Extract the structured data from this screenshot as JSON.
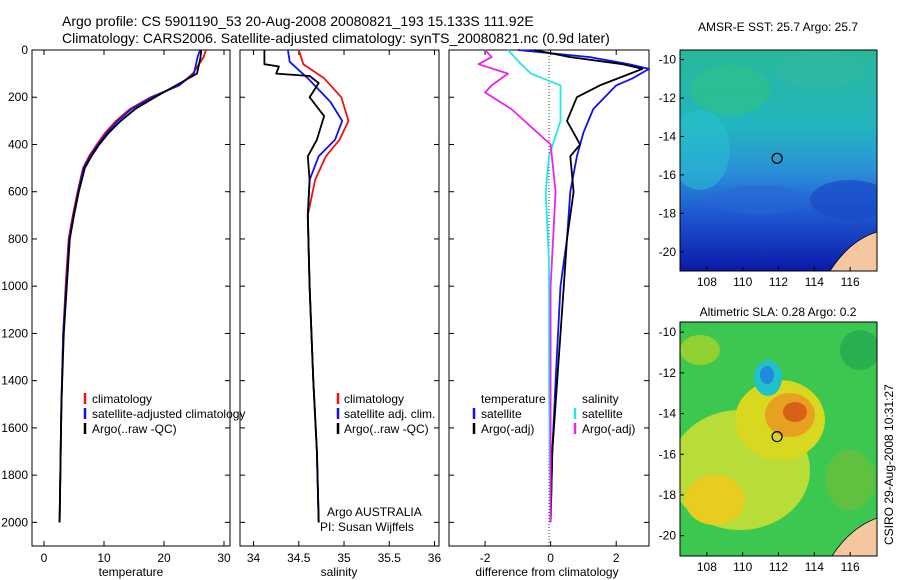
{
  "header": {
    "title_line1": "Argo profile: CS 5901190_53 20-Aug-2008 20080821_193 15.133S 111.92E",
    "title_line2": "Climatology: CARS2006. Satellite-adjusted climatology: synTS_20080821.nc (0.9d later)"
  },
  "side_label": "CSIRO 29-Aug-2008 10:31:27",
  "colors": {
    "climatology": "#ee1111",
    "satellite": "#1111ee",
    "argo": "#000000",
    "sat_diff": "#22e8e8",
    "argo_diff": "#ee22ee"
  },
  "chart_data": [
    {
      "type": "line",
      "name": "temperature",
      "xlabel": "temperature",
      "ylabel": "",
      "xlim": [
        -2,
        31
      ],
      "ylim": [
        2100,
        0
      ],
      "xticks": [
        "0",
        "10",
        "20",
        "30"
      ],
      "yticks": [
        "0",
        "200",
        "400",
        "600",
        "800",
        "1000",
        "1200",
        "1400",
        "1600",
        "1800",
        "2000"
      ],
      "legend": [
        "climatology",
        "satellite-adjusted climatology",
        "Argo(..raw -QC)"
      ],
      "series": [
        {
          "name": "climatology",
          "color": "#ee1111",
          "x": [
            27.0,
            26.6,
            24.8,
            22.5,
            17.8,
            14.3,
            12.0,
            10.2,
            8.8,
            7.5,
            6.5,
            5.6,
            4.8,
            4.1,
            3.6,
            3.2,
            2.9,
            2.6
          ],
          "y": [
            0,
            30,
            100,
            150,
            200,
            250,
            300,
            350,
            400,
            450,
            500,
            600,
            700,
            800,
            1000,
            1200,
            1500,
            2000
          ]
        },
        {
          "name": "satellite-adjusted climatology",
          "color": "#1111ee",
          "x": [
            26.0,
            25.6,
            25.0,
            22.5,
            18.0,
            14.6,
            12.3,
            10.5,
            9.0,
            7.7,
            6.6,
            5.7,
            4.9,
            4.2,
            3.7,
            3.2,
            2.9,
            2.6
          ],
          "y": [
            0,
            30,
            100,
            150,
            200,
            250,
            300,
            350,
            400,
            450,
            500,
            600,
            700,
            800,
            1000,
            1200,
            1500,
            2000
          ]
        },
        {
          "name": "Argo",
          "color": "#000000",
          "x": [
            26.2,
            26.1,
            25.5,
            22.0,
            18.5,
            15.2,
            12.8,
            10.8,
            9.2,
            7.9,
            6.8,
            5.8,
            5.0,
            4.3,
            3.8,
            3.3,
            2.9,
            2.6
          ],
          "y": [
            0,
            30,
            100,
            150,
            200,
            250,
            300,
            350,
            400,
            450,
            500,
            600,
            700,
            800,
            1000,
            1200,
            1500,
            2000
          ]
        }
      ]
    },
    {
      "type": "line",
      "name": "salinity",
      "xlabel": "salinity",
      "xlim": [
        33.85,
        36.05
      ],
      "ylim": [
        2100,
        0
      ],
      "xticks": [
        "34",
        "34.5",
        "35",
        "35.5",
        "36"
      ],
      "legend": [
        "climatology",
        "satellite adj. clim.",
        "Argo(..raw -QC)"
      ],
      "annotation": [
        "Argo AUSTRALIA",
        "PI: Susan Wijffels"
      ],
      "series": [
        {
          "name": "climatology",
          "color": "#ee1111",
          "x": [
            34.5,
            34.55,
            34.78,
            34.97,
            35.05,
            34.95,
            34.8,
            34.68,
            34.6,
            34.62,
            34.66,
            34.7,
            34.72
          ],
          "y": [
            0,
            60,
            120,
            200,
            300,
            380,
            450,
            550,
            700,
            1000,
            1400,
            1700,
            2000
          ]
        },
        {
          "name": "satellite adj. clim.",
          "color": "#1111ee",
          "x": [
            34.38,
            34.4,
            34.6,
            34.85,
            34.98,
            34.9,
            34.72,
            34.62,
            34.6,
            34.62,
            34.66,
            34.7,
            34.72
          ],
          "y": [
            0,
            50,
            120,
            220,
            300,
            380,
            450,
            550,
            700,
            1000,
            1400,
            1700,
            2000
          ]
        },
        {
          "name": "Argo",
          "color": "#000000",
          "x": [
            34.12,
            34.12,
            34.28,
            34.25,
            34.62,
            34.72,
            34.62,
            34.78,
            34.7,
            34.6,
            34.62,
            34.6,
            34.62,
            34.66,
            34.7,
            34.72
          ],
          "y": [
            0,
            60,
            70,
            100,
            110,
            140,
            200,
            280,
            380,
            450,
            550,
            700,
            1000,
            1400,
            1700,
            2000
          ]
        }
      ]
    },
    {
      "type": "line",
      "name": "difference",
      "xlabel": "difference from climatology",
      "xlim": [
        -3.1,
        3.0
      ],
      "ylim": [
        2100,
        0
      ],
      "xticks": [
        "-2",
        "0",
        "2"
      ],
      "legend_left": [
        "temperature",
        "satellite",
        "Argo(-adj)"
      ],
      "legend_right": [
        "salinity",
        "satellite",
        "Argo(-adj)"
      ],
      "series": [
        {
          "name": "temperature satellite",
          "color": "#1111ee",
          "x": [
            -1.0,
            1.2,
            2.4,
            3.0,
            2.5,
            2.0,
            1.3,
            1.0,
            0.8,
            0.6,
            0.5,
            0.3,
            0.15,
            0.05,
            0.0
          ],
          "y": [
            0,
            30,
            60,
            80,
            120,
            150,
            250,
            350,
            450,
            600,
            800,
            1000,
            1400,
            1700,
            2000
          ]
        },
        {
          "name": "temperature Argo",
          "color": "#000000",
          "x": [
            -0.5,
            0.6,
            2.2,
            2.8,
            1.5,
            0.8,
            0.5,
            0.9,
            0.6,
            0.7,
            0.5,
            0.4,
            0.2,
            0.05,
            0.0
          ],
          "y": [
            0,
            30,
            60,
            80,
            150,
            200,
            300,
            400,
            450,
            600,
            800,
            1000,
            1400,
            1700,
            2000
          ]
        },
        {
          "name": "salinity satellite",
          "color": "#22e8e8",
          "x": [
            -1.3,
            -1.1,
            -0.9,
            -0.6,
            0.3,
            0.3,
            -0.05,
            -0.15,
            -0.05,
            -0.05,
            0.0
          ],
          "y": [
            0,
            30,
            60,
            100,
            150,
            300,
            450,
            600,
            900,
            1400,
            2000
          ]
        },
        {
          "name": "salinity Argo",
          "color": "#ee22ee",
          "x": [
            -2.0,
            -1.8,
            -2.2,
            -1.3,
            -1.8,
            -2.0,
            -1.2,
            0.0,
            0.15,
            0.0,
            0.0
          ],
          "y": [
            0,
            30,
            60,
            100,
            150,
            180,
            250,
            400,
            600,
            1000,
            2000
          ]
        }
      ]
    },
    {
      "type": "heatmap",
      "name": "amsr-sst",
      "title": "AMSR-E SST: 25.7 Argo: 25.7",
      "xlim": [
        106.5,
        117.5
      ],
      "ylim": [
        -21,
        -9.5
      ],
      "xticks": [
        "108",
        "110",
        "112",
        "114",
        "116"
      ],
      "yticks": [
        "-10",
        "-12",
        "-14",
        "-16",
        "-18",
        "-20"
      ],
      "marker": {
        "lon": 111.92,
        "lat": -15.133
      }
    },
    {
      "type": "heatmap",
      "name": "altimetric-sla",
      "title": "Altimetric SLA: 0.28 Argo: 0.2",
      "xlim": [
        106.5,
        117.5
      ],
      "ylim": [
        -21,
        -9.5
      ],
      "xticks": [
        "108",
        "110",
        "112",
        "114",
        "116"
      ],
      "yticks": [
        "-10",
        "-12",
        "-14",
        "-16",
        "-18",
        "-20"
      ],
      "marker": {
        "lon": 111.92,
        "lat": -15.133
      }
    }
  ]
}
